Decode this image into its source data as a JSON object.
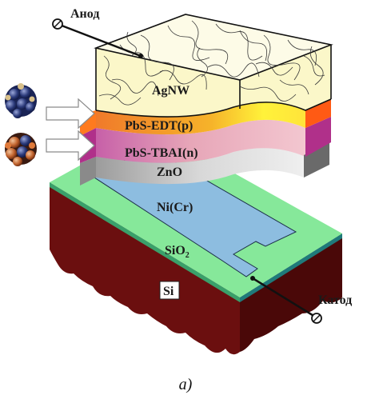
{
  "labels": {
    "anode": "Анод",
    "cathode": "Катод",
    "agnw": "AgNW",
    "pbs_edt": "PbS-EDT(p)",
    "pbs_tbai": "PbS-TBAI(n)",
    "zno": "ZnO",
    "nicr": "Ni(Cr)",
    "sio2_base": "SiO",
    "sio2_sub": "2",
    "si": "Si"
  },
  "caption": "a)",
  "colors": {
    "si": "#6b0f0f",
    "si_side": "#4a0808",
    "sio2": "#86e89a",
    "nicr": "#8dbde0",
    "zno": "#c8c8c8",
    "pbs_tbai": "#e7a6b4",
    "pbs_tbai_side": "#b0308a",
    "pbs_edt": "#f08a1e",
    "pbs_edt_side": "#ff5a14",
    "agnw": "#fbf6c4",
    "nanowire": "#3a3a3a",
    "arrow_fill": "#ffffff"
  },
  "icons": [
    "quantum-dot-cluster-blue",
    "quantum-dot-cluster-orange",
    "electrode-terminal-icon"
  ]
}
